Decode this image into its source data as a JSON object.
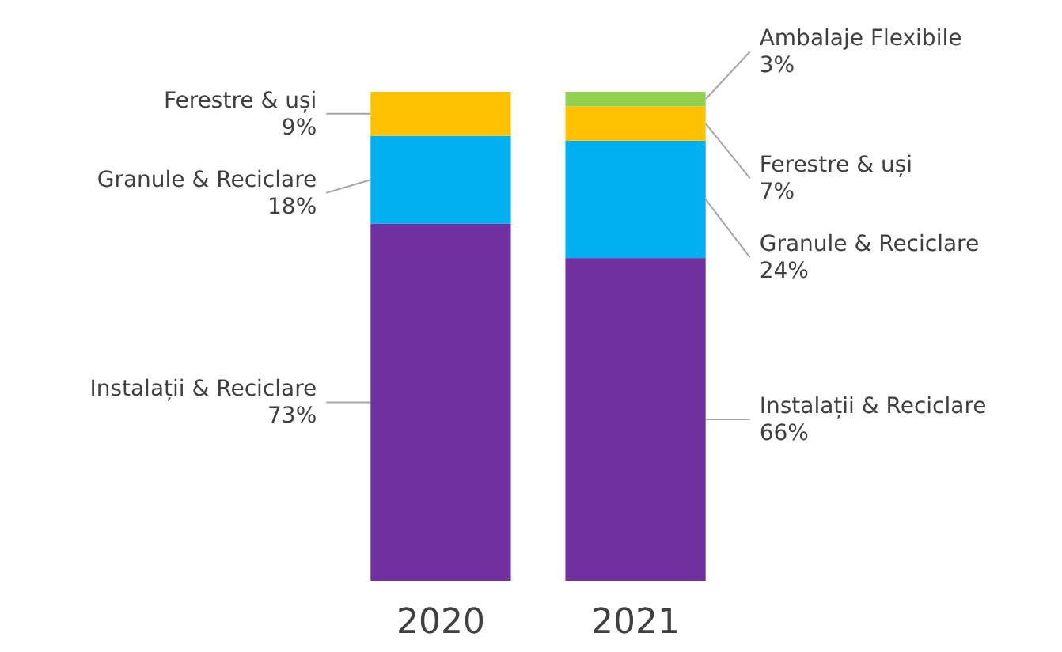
{
  "chart_data": {
    "type": "bar",
    "stacked": true,
    "categories": [
      "2020",
      "2021"
    ],
    "series": [
      {
        "name": "Instalații & Reciclare",
        "color": "#7030a0",
        "values": [
          73,
          66
        ],
        "value_labels": [
          "73%",
          "66%"
        ]
      },
      {
        "name": "Granule & Reciclare",
        "color": "#00b0f0",
        "values": [
          18,
          24
        ],
        "value_labels": [
          "18%",
          "24%"
        ]
      },
      {
        "name": "Ferestre & uși",
        "color": "#ffc000",
        "values": [
          9,
          7
        ],
        "value_labels": [
          "9%",
          "7%"
        ]
      },
      {
        "name": "Ambalaje Flexibile",
        "color": "#92d050",
        "values": [
          null,
          3
        ],
        "value_labels": [
          null,
          "3%"
        ]
      }
    ]
  }
}
